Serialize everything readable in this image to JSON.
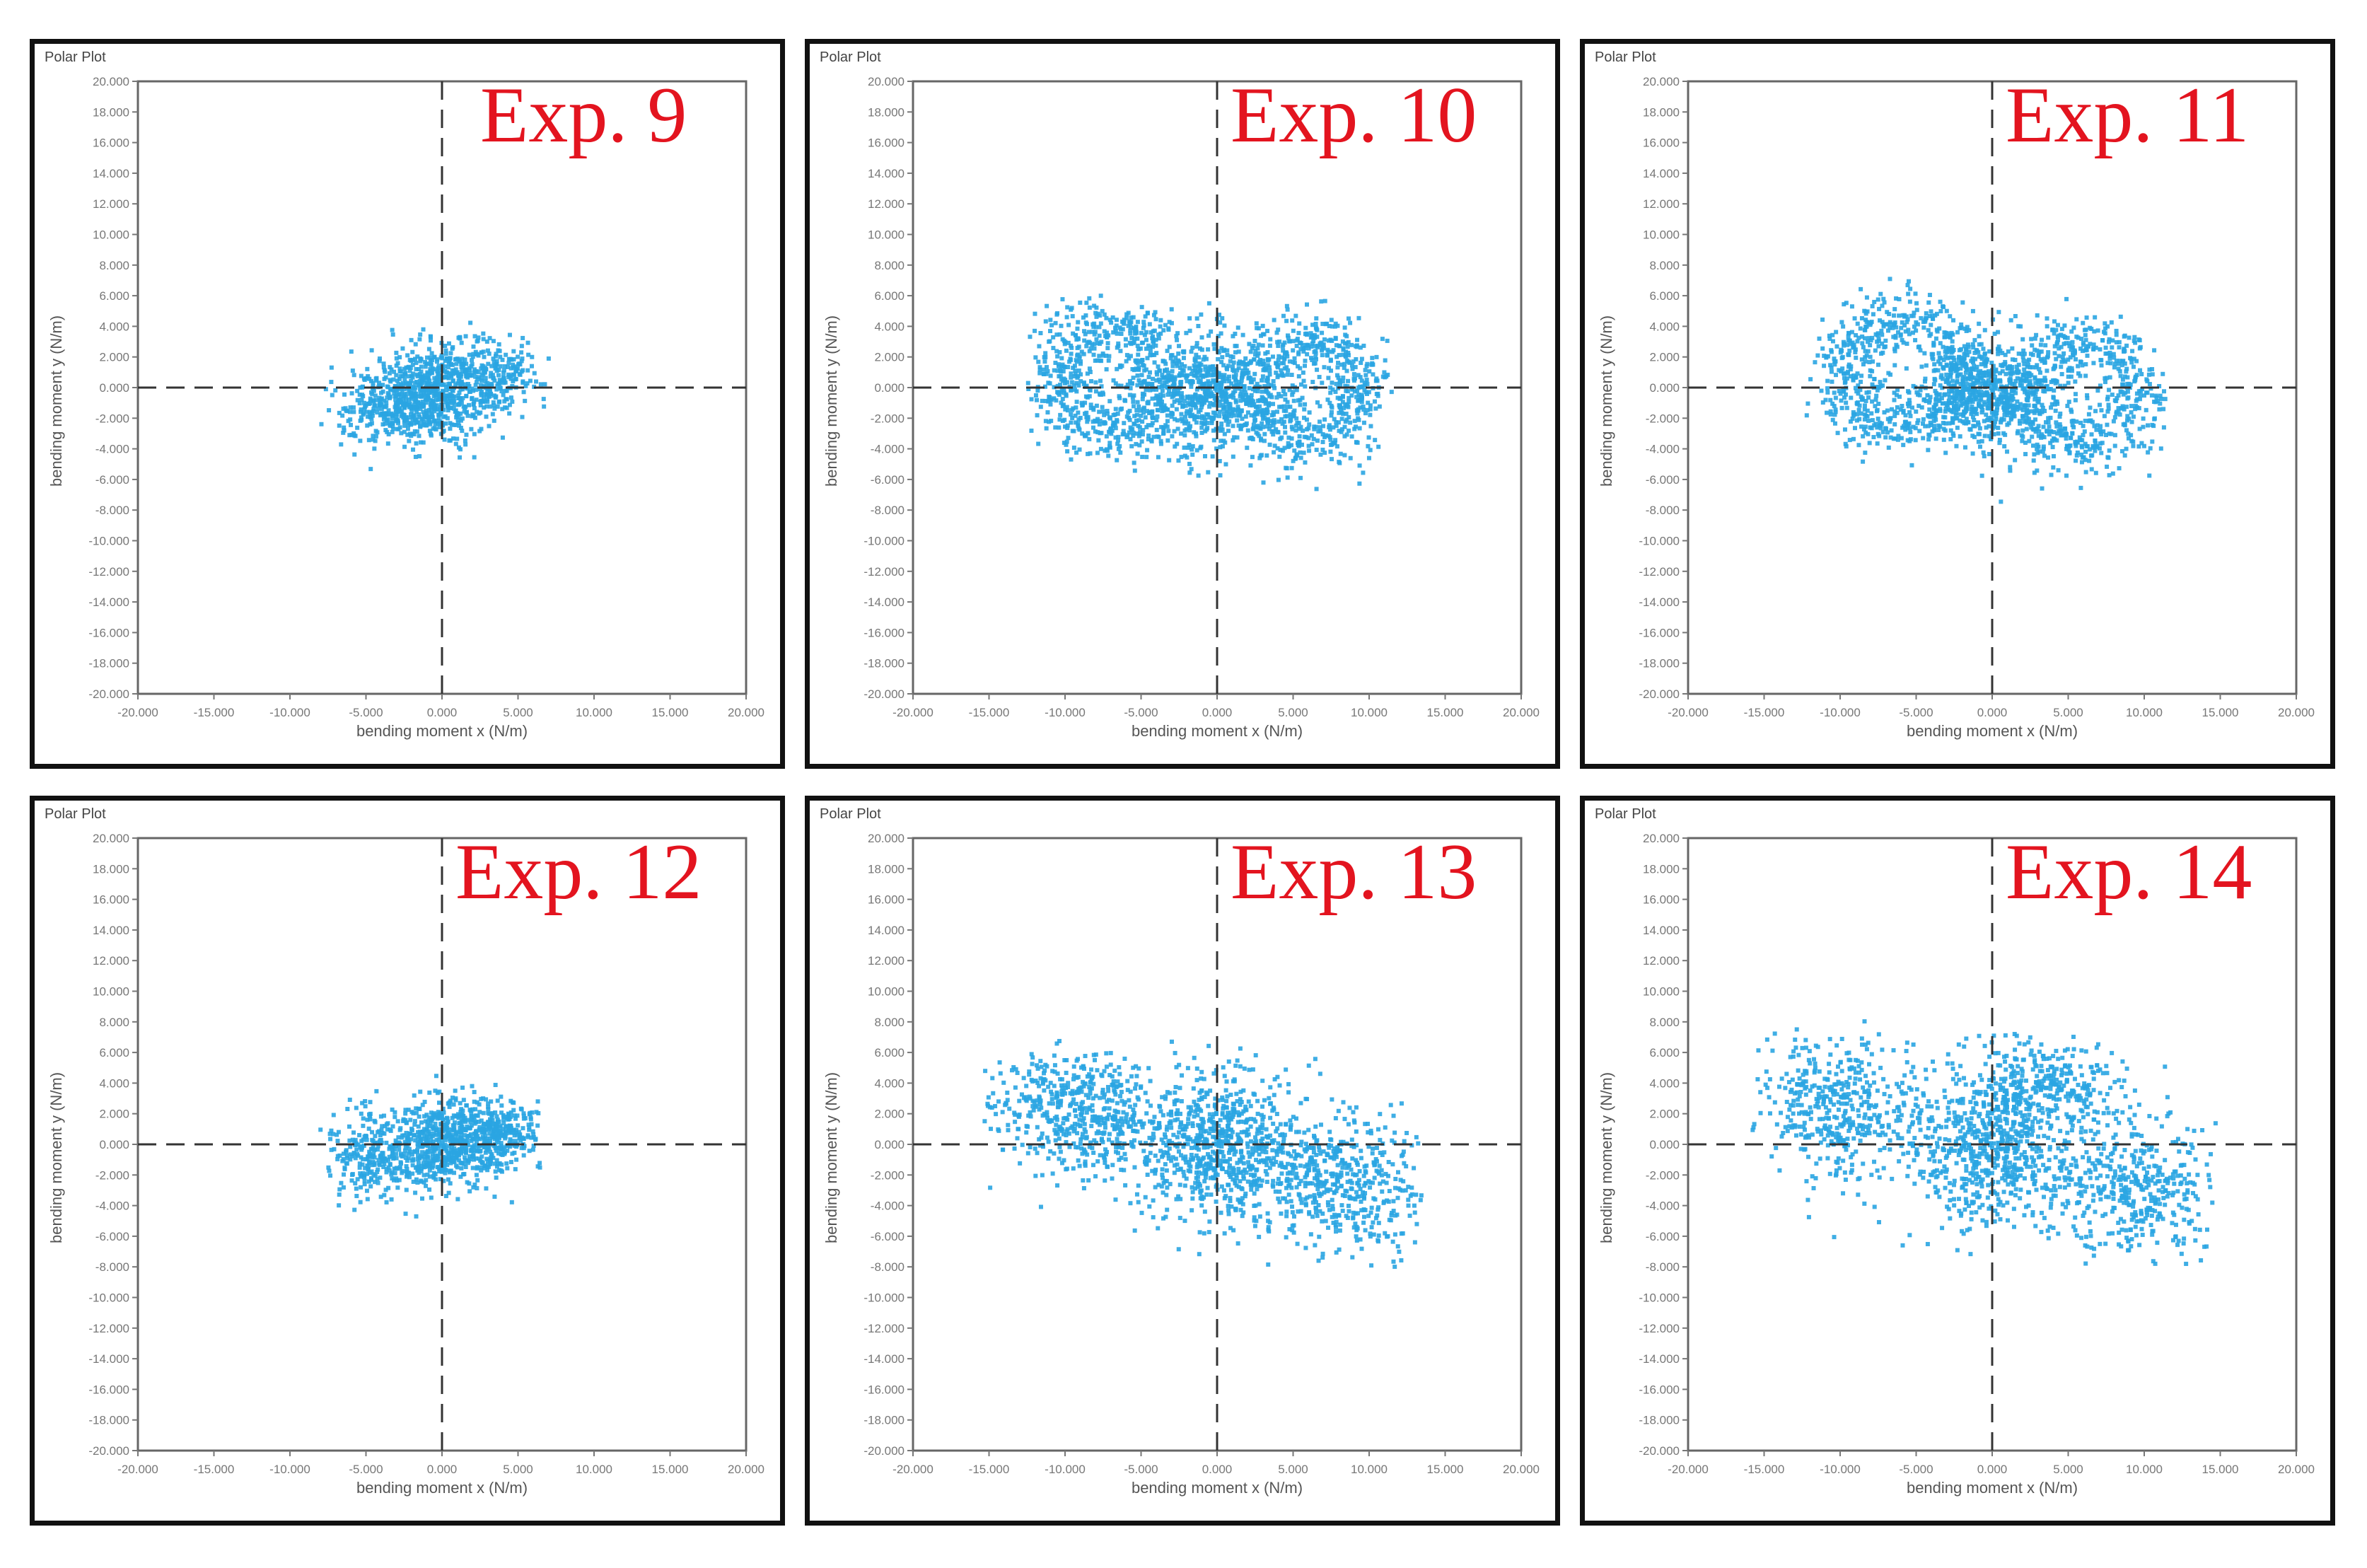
{
  "figure": {
    "layout": {
      "rows": 2,
      "cols": 3
    },
    "panel_title": "Polar Plot",
    "x_axis_label": "bending moment x (N/m)",
    "y_axis_label": "bending moment y (N/m)",
    "x_tick_labels": [
      "-20.000",
      "-15.000",
      "-10.000",
      "-5.000",
      "0.000",
      "5.000",
      "10.000",
      "15.000",
      "20.000"
    ],
    "y_tick_labels": [
      "20.000",
      "18.000",
      "16.000",
      "14.000",
      "12.000",
      "10.000",
      "8.000",
      "6.000",
      "4.000",
      "2.000",
      "0.000",
      "-2.000",
      "-4.000",
      "-6.000",
      "-8.000",
      "-10.000",
      "-12.000",
      "-14.000",
      "-16.000",
      "-18.000",
      "-20.000"
    ],
    "point_color": "#2aa5e2",
    "label_color": "#e3141f",
    "panels": [
      {
        "label": "Exp. 9"
      },
      {
        "label": "Exp. 10"
      },
      {
        "label": "Exp. 11"
      },
      {
        "label": "Exp. 12"
      },
      {
        "label": "Exp. 13"
      },
      {
        "label": "Exp. 14"
      }
    ]
  },
  "chart_data": [
    {
      "type": "scatter",
      "title": "Polar Plot",
      "annotation": "Exp. 9",
      "xlabel": "bending moment x (N/m)",
      "ylabel": "bending moment y (N/m)",
      "xlim": [
        -20000,
        20000
      ],
      "ylim": [
        -20000,
        20000
      ],
      "grid": false,
      "reference_lines": "dashed x=0, y=0",
      "clusters": [
        {
          "cx": -500,
          "cy": -300,
          "sx": 2200,
          "sy": 1600,
          "n": 700,
          "rot": 0.35
        },
        {
          "cx": -3500,
          "cy": -1200,
          "sx": 1800,
          "sy": 1200,
          "n": 220,
          "rot": 0.3
        },
        {
          "cx": 3500,
          "cy": 800,
          "sx": 1500,
          "sy": 1100,
          "n": 180,
          "rot": 0.2
        }
      ],
      "extent": {
        "x": [
          -8000,
          7500
        ],
        "y": [
          -5500,
          5000
        ]
      }
    },
    {
      "type": "scatter",
      "title": "Polar Plot",
      "annotation": "Exp. 10",
      "xlabel": "bending moment x (N/m)",
      "ylabel": "bending moment y (N/m)",
      "xlim": [
        -20000,
        20000
      ],
      "ylim": [
        -20000,
        20000
      ],
      "grid": false,
      "reference_lines": "dashed x=0, y=0",
      "clusters": [
        {
          "cx": -500,
          "cy": -400,
          "sx": 2000,
          "sy": 2000,
          "n": 600,
          "rot": 0.0
        },
        {
          "cx": -7000,
          "cy": 500,
          "ring": 3400,
          "ringw": 1100,
          "n": 700
        },
        {
          "cx": 6000,
          "cy": -200,
          "ring": 3400,
          "ringw": 1100,
          "n": 700
        }
      ],
      "extent": {
        "x": [
          -12500,
          11500
        ],
        "y": [
          -8000,
          7500
        ]
      }
    },
    {
      "type": "scatter",
      "title": "Polar Plot",
      "annotation": "Exp. 11",
      "xlabel": "bending moment x (N/m)",
      "ylabel": "bending moment y (N/m)",
      "xlim": [
        -20000,
        20000
      ],
      "ylim": [
        -20000,
        20000
      ],
      "grid": false,
      "reference_lines": "dashed x=0, y=0",
      "clusters": [
        {
          "cx": -200,
          "cy": -300,
          "sx": 2000,
          "sy": 1800,
          "n": 600,
          "rot": 0.0
        },
        {
          "cx": -6000,
          "cy": 1000,
          "ring": 3600,
          "ringw": 1100,
          "n": 650
        },
        {
          "cx": 6000,
          "cy": -500,
          "ring": 3400,
          "ringw": 1100,
          "n": 600
        }
      ],
      "extent": {
        "x": [
          -13000,
          11500
        ],
        "y": [
          -8500,
          8700
        ]
      }
    },
    {
      "type": "scatter",
      "title": "Polar Plot",
      "annotation": "Exp. 12",
      "xlabel": "bending moment x (N/m)",
      "ylabel": "bending moment y (N/m)",
      "xlim": [
        -20000,
        20000
      ],
      "ylim": [
        -20000,
        20000
      ],
      "grid": false,
      "reference_lines": "dashed x=0, y=0",
      "clusters": [
        {
          "cx": 300,
          "cy": 0,
          "sx": 2400,
          "sy": 1500,
          "n": 750,
          "rot": 0.15
        },
        {
          "cx": -5000,
          "cy": -800,
          "sx": 1400,
          "sy": 1400,
          "n": 200,
          "rot": 0.0
        },
        {
          "cx": 4000,
          "cy": 700,
          "sx": 1400,
          "sy": 1000,
          "n": 200,
          "rot": 0.0
        }
      ],
      "extent": {
        "x": [
          -8000,
          6500
        ],
        "y": [
          -5000,
          4500
        ]
      }
    },
    {
      "type": "scatter",
      "title": "Polar Plot",
      "annotation": "Exp. 13",
      "xlabel": "bending moment x (N/m)",
      "ylabel": "bending moment y (N/m)",
      "xlim": [
        -20000,
        20000
      ],
      "ylim": [
        -20000,
        20000
      ],
      "grid": false,
      "reference_lines": "dashed x=0, y=0",
      "clusters": [
        {
          "cx": 0,
          "cy": 0,
          "sx": 2600,
          "sy": 2600,
          "n": 700,
          "rot": 0.0
        },
        {
          "cx": -9000,
          "cy": 2000,
          "sx": 3000,
          "sy": 2000,
          "n": 550,
          "rot": -0.2
        },
        {
          "cx": 8000,
          "cy": -2500,
          "sx": 3000,
          "sy": 2200,
          "n": 550,
          "rot": -0.3
        }
      ],
      "extent": {
        "x": [
          -15500,
          13500
        ],
        "y": [
          -8500,
          7000
        ]
      }
    },
    {
      "type": "scatter",
      "title": "Polar Plot",
      "annotation": "Exp. 14",
      "xlabel": "bending moment x (N/m)",
      "ylabel": "bending moment y (N/m)",
      "xlim": [
        -20000,
        20000
      ],
      "ylim": [
        -20000,
        20000
      ],
      "grid": false,
      "reference_lines": "dashed x=0, y=0",
      "clusters": [
        {
          "cx": 0,
          "cy": 0,
          "sx": 2800,
          "sy": 2800,
          "n": 700,
          "rot": 0.0
        },
        {
          "cx": -10000,
          "cy": 2500,
          "sx": 3000,
          "sy": 2200,
          "n": 450,
          "rot": -0.2
        },
        {
          "cx": 9000,
          "cy": -3000,
          "sx": 3000,
          "sy": 2200,
          "n": 450,
          "rot": -0.3
        },
        {
          "cx": 4000,
          "cy": 4000,
          "sx": 2200,
          "sy": 1600,
          "n": 250,
          "rot": 0.0
        }
      ],
      "extent": {
        "x": [
          -16000,
          15000
        ],
        "y": [
          -8000,
          8200
        ]
      }
    }
  ]
}
